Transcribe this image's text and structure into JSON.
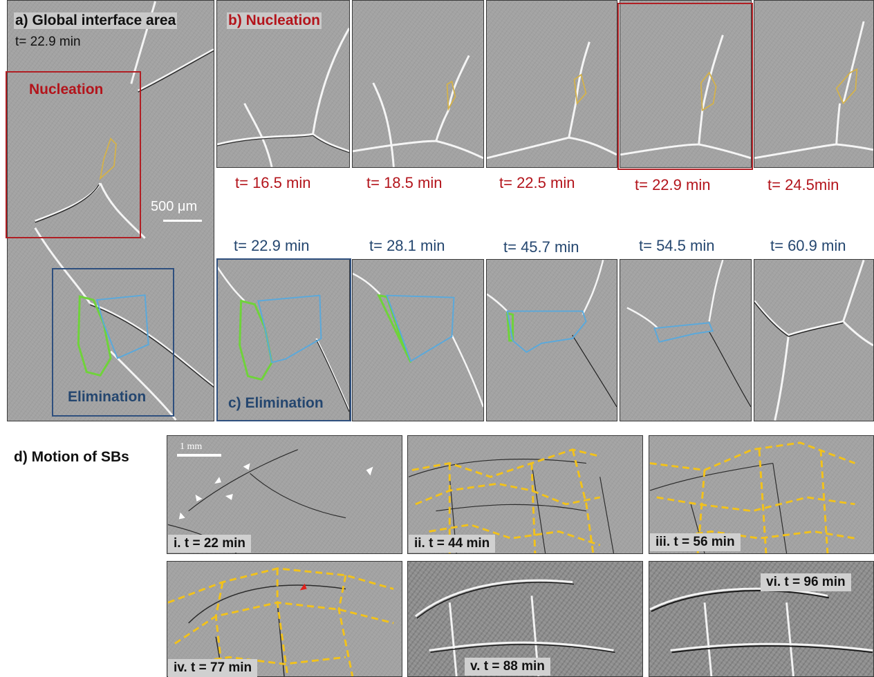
{
  "panel_a": {
    "title": "a) Global interface area",
    "time": "t= 22.9 min",
    "nucleation_label": "Nucleation",
    "elimination_label": "Elimination",
    "scale_label": "500 μm"
  },
  "panel_b": {
    "title": "b) Nucleation",
    "times": [
      "t= 16.5 min",
      "t= 18.5 min",
      "t= 22.5 min",
      "t= 22.9 min",
      "t= 24.5min"
    ]
  },
  "panel_c": {
    "title": "c) Elimination",
    "times": [
      "t= 22.9 min",
      "t= 28.1 min",
      "t= 45.7 min",
      "t= 54.5 min",
      "t= 60.9 min"
    ]
  },
  "panel_d": {
    "title": "d) Motion of SBs",
    "scale_label": "1 mm",
    "frames": [
      "i. t = 22 min",
      "ii. t = 44 min",
      "iii. t = 56 min",
      "iv. t = 77 min",
      "v. t = 88 min",
      "vi. t = 96 min"
    ]
  },
  "colors": {
    "nucleation_red": "#b3141b",
    "elimination_blue": "#24466f",
    "grain_green": "#6fd33a",
    "grain_cyan": "#5aa9dc",
    "nucleus_yellow": "#d4b24a",
    "boundary_yellow": "#f2c21b"
  }
}
